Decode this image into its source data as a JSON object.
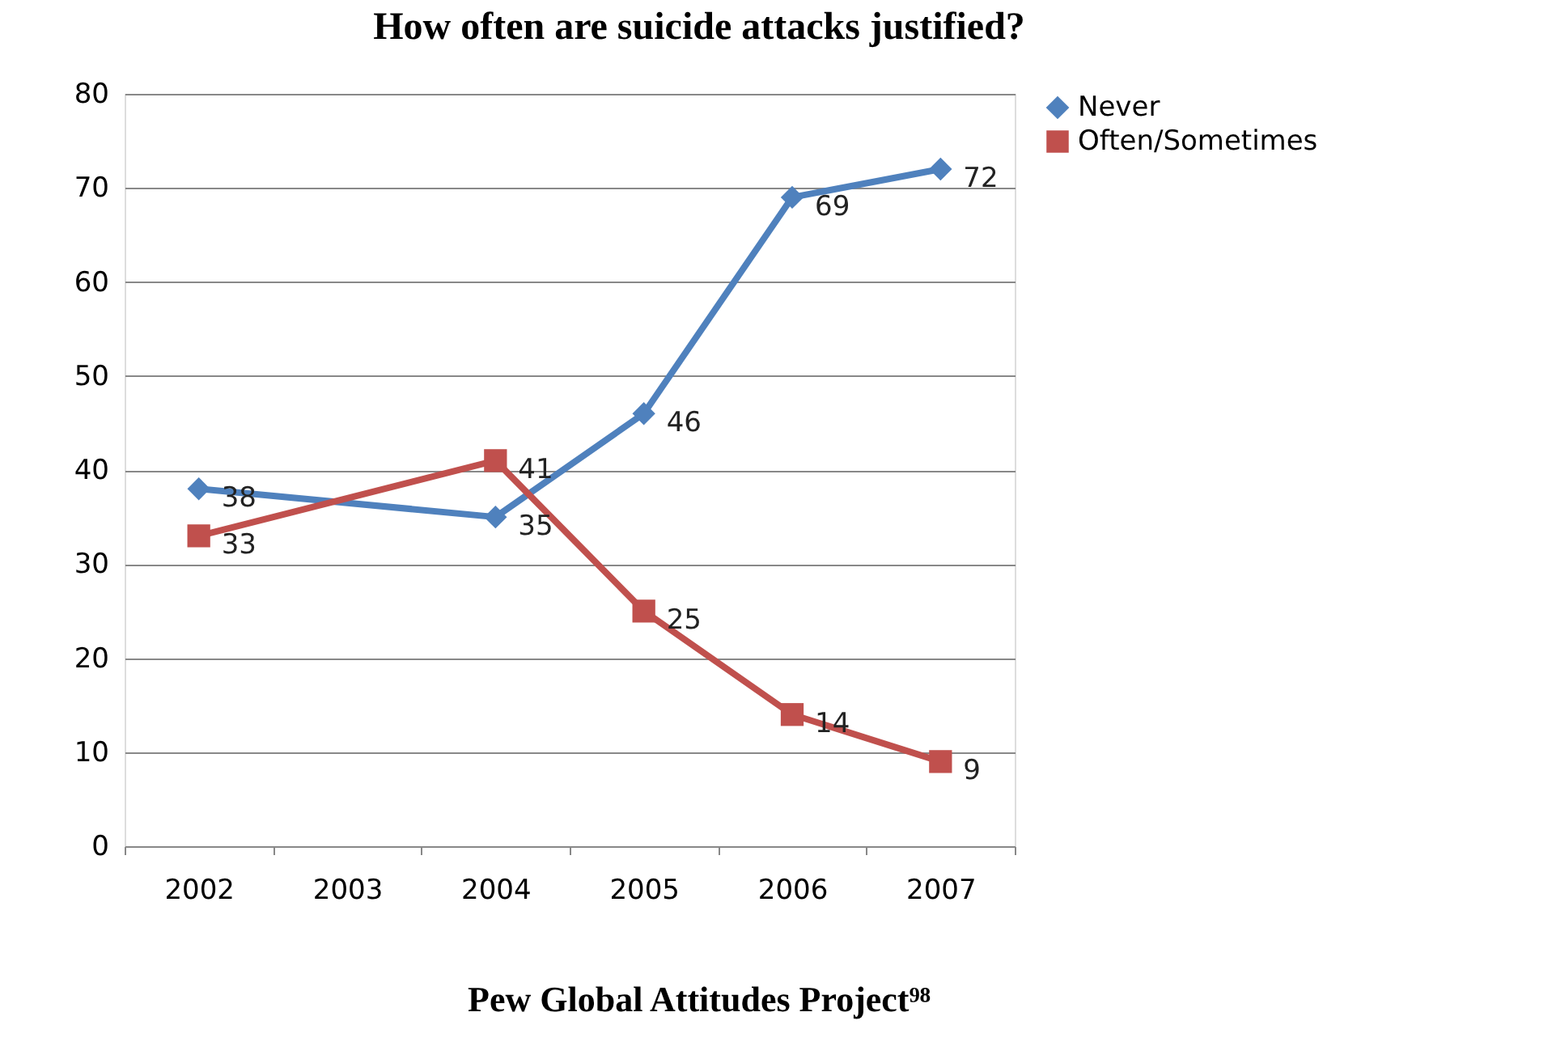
{
  "chart_data": {
    "type": "line",
    "title": "How often are suicide attacks justified?",
    "categories": [
      "2002",
      "2003",
      "2004",
      "2005",
      "2006",
      "2007"
    ],
    "series": [
      {
        "name": "Never",
        "color": "#4f81bd",
        "marker": "diamond",
        "values": [
          38,
          null,
          35,
          46,
          69,
          72
        ]
      },
      {
        "name": "Often/Sometimes",
        "color": "#c0504d",
        "marker": "square",
        "values": [
          33,
          null,
          41,
          25,
          14,
          9
        ]
      }
    ],
    "ylim": [
      0,
      80
    ],
    "yticks": [
      0,
      10,
      20,
      30,
      40,
      50,
      60,
      70,
      80
    ],
    "grid": "y",
    "legend": "right",
    "data_labels": true,
    "annotations": [
      "Pew Global Attitudes Project⁹⁸"
    ]
  }
}
